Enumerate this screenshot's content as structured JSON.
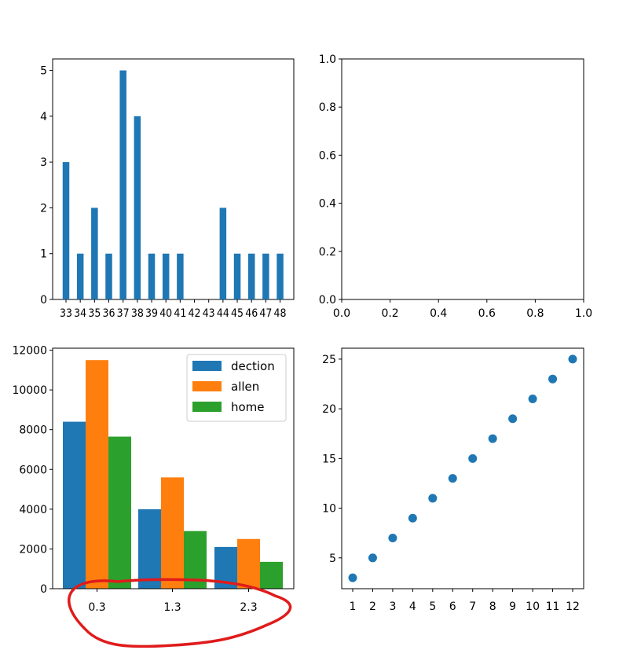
{
  "chart_data": [
    {
      "type": "bar",
      "categories": [
        "33",
        "34",
        "35",
        "36",
        "37",
        "38",
        "39",
        "40",
        "41",
        "42",
        "43",
        "44",
        "45",
        "46",
        "47",
        "48"
      ],
      "values": [
        3,
        1,
        2,
        1,
        5,
        4,
        1,
        1,
        1,
        0,
        0,
        2,
        1,
        1,
        1,
        1
      ],
      "yticks": [
        "0",
        "1",
        "2",
        "3",
        "4",
        "5"
      ],
      "ylim": [
        0,
        5.25
      ],
      "color": "#1f77b4"
    },
    {
      "type": "line",
      "x": [],
      "y": [],
      "xlim": [
        0,
        1
      ],
      "ylim": [
        0,
        1
      ],
      "xticks": [
        "0.0",
        "0.2",
        "0.4",
        "0.6",
        "0.8",
        "1.0"
      ],
      "yticks": [
        "0.0",
        "0.2",
        "0.4",
        "0.6",
        "0.8",
        "1.0"
      ]
    },
    {
      "type": "bar",
      "categories": [
        "0.3",
        "1.3",
        "2.3"
      ],
      "series": [
        {
          "name": "dection",
          "values": [
            8400,
            4000,
            2100
          ],
          "color": "#1f77b4"
        },
        {
          "name": "allen",
          "values": [
            11500,
            5600,
            2500
          ],
          "color": "#ff7f0e"
        },
        {
          "name": "home",
          "values": [
            7650,
            2900,
            1350
          ],
          "color": "#2ca02c"
        }
      ],
      "yticks": [
        "0",
        "2000",
        "4000",
        "6000",
        "8000",
        "10000",
        "12000"
      ],
      "ylim": [
        0,
        12100
      ],
      "legend": "top-right"
    },
    {
      "type": "scatter",
      "x": [
        1,
        2,
        3,
        4,
        5,
        6,
        7,
        8,
        9,
        10,
        11,
        12
      ],
      "y": [
        3,
        5,
        7,
        9,
        11,
        13,
        15,
        17,
        19,
        21,
        23,
        25
      ],
      "xticks": [
        "1",
        "2",
        "3",
        "4",
        "5",
        "6",
        "7",
        "8",
        "9",
        "10",
        "11",
        "12"
      ],
      "yticks": [
        "5",
        "10",
        "15",
        "20",
        "25"
      ],
      "xlim": [
        0.45,
        12.55
      ],
      "ylim": [
        1.9,
        26.1
      ],
      "color": "#1f77b4"
    }
  ],
  "annotation": {
    "type": "freehand-circle",
    "color": "#e01b1b"
  }
}
